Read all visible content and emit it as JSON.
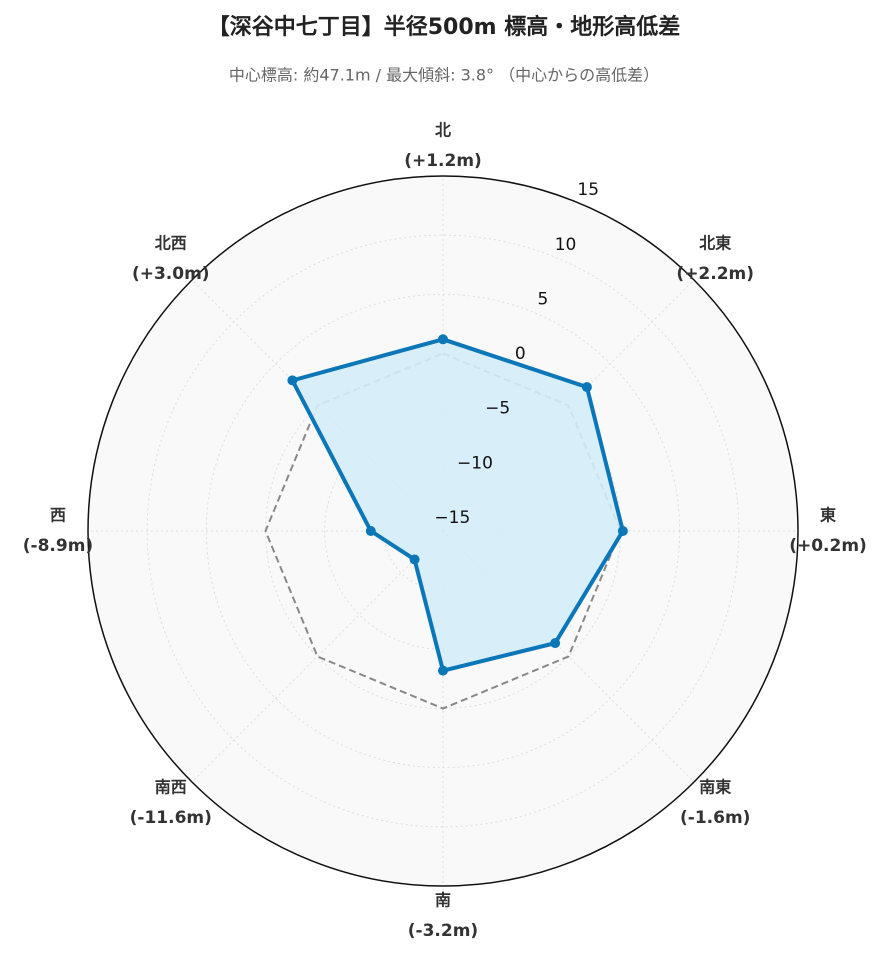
{
  "chart_data": {
    "type": "radar",
    "title": "【深谷中七丁目】半径500m 標高・地形高低差",
    "subtitle": "中心標高: 約47.1m / 最大傾斜: 3.8° （中心からの高低差）",
    "categories": [
      "北",
      "北東",
      "東",
      "南東",
      "南",
      "南西",
      "西",
      "北西"
    ],
    "values": [
      1.2,
      2.2,
      0.2,
      -1.6,
      -3.2,
      -11.6,
      -8.9,
      3.0
    ],
    "value_labels": [
      "(+1.2m)",
      "(+2.2m)",
      "(+0.2m)",
      "(-1.6m)",
      "(-3.2m)",
      "(-11.6m)",
      "(-8.9m)",
      "(+3.0m)"
    ],
    "color": "#0b76b8",
    "fill_color": "#d4ecf8",
    "reference_value": 0,
    "reference_color": "#888888",
    "rlim": [
      -15,
      15
    ],
    "rticks": [
      {
        "value": -15,
        "label": "−15"
      },
      {
        "value": -10,
        "label": "−10"
      },
      {
        "value": -5,
        "label": "−5"
      },
      0,
      5,
      10,
      15
    ],
    "grid": true
  }
}
